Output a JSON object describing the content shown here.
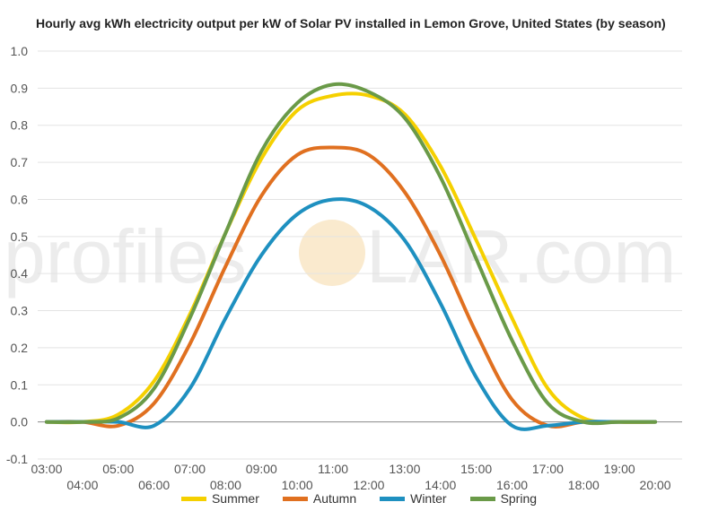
{
  "watermark": {
    "text_before": "profiles",
    "text_after": "LAR.com",
    "sun_color": "#f5d9a6"
  },
  "chart_data": {
    "type": "line",
    "title": "Hourly avg kWh electricity output per kW of Solar PV installed in Lemon Grove, United States (by season)",
    "xlabel": "",
    "ylabel": "",
    "ylim": [
      -0.1,
      1.0
    ],
    "y_ticks": [
      -0.1,
      0.0,
      0.1,
      0.2,
      0.3,
      0.4,
      0.5,
      0.6,
      0.7,
      0.8,
      0.9,
      1.0
    ],
    "y_tick_labels": [
      "-0.1",
      "0.0",
      "0.1",
      "0.2",
      "0.3",
      "0.4",
      "0.5",
      "0.6",
      "0.7",
      "0.8",
      "0.9",
      "1.0"
    ],
    "x": [
      3,
      4,
      5,
      6,
      7,
      8,
      9,
      10,
      11,
      12,
      13,
      14,
      15,
      16,
      17,
      18,
      19,
      20
    ],
    "x_tick_labels": [
      "03:00",
      "04:00",
      "05:00",
      "06:00",
      "07:00",
      "08:00",
      "09:00",
      "10:00",
      "11:00",
      "12:00",
      "13:00",
      "14:00",
      "15:00",
      "16:00",
      "17:00",
      "18:00",
      "19:00",
      "20:00"
    ],
    "grid": true,
    "legend_position": "bottom",
    "series": [
      {
        "name": "Summer",
        "color": "#f5d000",
        "values": [
          0.0,
          0.0,
          0.02,
          0.11,
          0.29,
          0.51,
          0.71,
          0.84,
          0.88,
          0.88,
          0.83,
          0.69,
          0.49,
          0.28,
          0.09,
          0.01,
          0.0,
          0.0
        ]
      },
      {
        "name": "Autumn",
        "color": "#e07020",
        "values": [
          0.0,
          0.0,
          -0.01,
          0.05,
          0.21,
          0.42,
          0.61,
          0.72,
          0.74,
          0.72,
          0.62,
          0.45,
          0.24,
          0.06,
          -0.01,
          0.0,
          0.0,
          0.0
        ]
      },
      {
        "name": "Winter",
        "color": "#1e90c0",
        "values": [
          0.0,
          0.0,
          0.0,
          -0.01,
          0.09,
          0.28,
          0.45,
          0.56,
          0.6,
          0.58,
          0.49,
          0.32,
          0.12,
          -0.01,
          -0.01,
          0.0,
          0.0,
          0.0
        ]
      },
      {
        "name": "Spring",
        "color": "#6a9a48",
        "values": [
          0.0,
          0.0,
          0.01,
          0.09,
          0.28,
          0.51,
          0.73,
          0.86,
          0.91,
          0.89,
          0.82,
          0.66,
          0.44,
          0.22,
          0.05,
          0.0,
          0.0,
          0.0
        ]
      }
    ]
  }
}
